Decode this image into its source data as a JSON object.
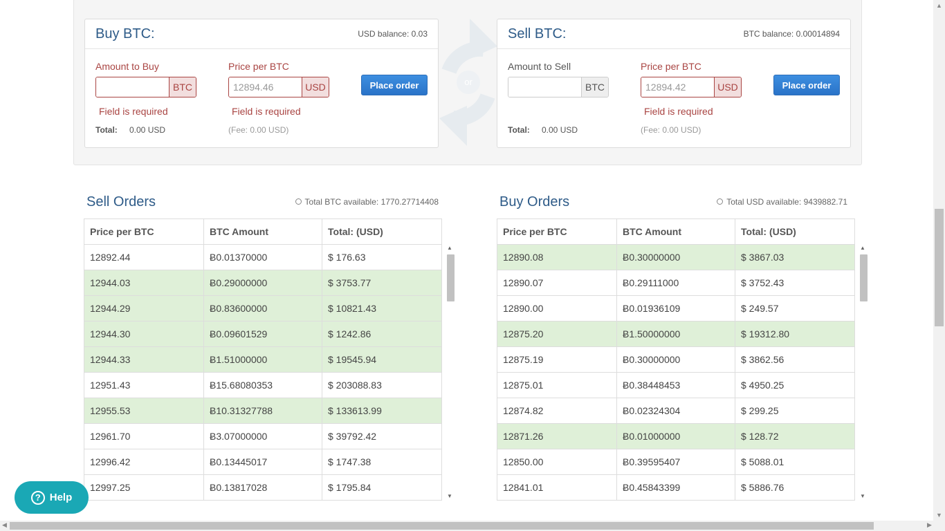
{
  "buy_form": {
    "title": "Buy BTC:",
    "balance": "USD balance: 0.03",
    "amount_label": "Amount to Buy",
    "amount_value": "",
    "amount_addon": "BTC",
    "price_label": "Price per BTC",
    "price_placeholder": "12894.46",
    "price_addon": "USD",
    "error_amount": "Field is required",
    "error_price": "Field is required",
    "total_label": "Total:",
    "total_value": "0.00 USD",
    "fee": "(Fee: 0.00 USD)",
    "button": "Place order"
  },
  "divider": {
    "label": "or",
    "icon": "swap-arrows-icon"
  },
  "sell_form": {
    "title": "Sell BTC:",
    "balance": "BTC balance: 0.00014894",
    "amount_label": "Amount to Sell",
    "amount_value": "",
    "amount_addon": "BTC",
    "price_label": "Price per BTC",
    "price_placeholder": "12894.42",
    "price_addon": "USD",
    "error_price": "Field is required",
    "total_label": "Total:",
    "total_value": "0.00 USD",
    "fee": "(Fee: 0.00 USD)",
    "button": "Place order"
  },
  "sell_orders": {
    "title": "Sell Orders",
    "info": "Total BTC available: 1770.27714408",
    "columns": [
      "Price per BTC",
      "BTC Amount",
      "Total: (USD)"
    ],
    "rows": [
      {
        "price": "12892.44",
        "amount": "Ƀ0.01370000",
        "total": "$ 176.63",
        "hl": false
      },
      {
        "price": "12944.03",
        "amount": "Ƀ0.29000000",
        "total": "$ 3753.77",
        "hl": true
      },
      {
        "price": "12944.29",
        "amount": "Ƀ0.83600000",
        "total": "$ 10821.43",
        "hl": true
      },
      {
        "price": "12944.30",
        "amount": "Ƀ0.09601529",
        "total": "$ 1242.86",
        "hl": true
      },
      {
        "price": "12944.33",
        "amount": "Ƀ1.51000000",
        "total": "$ 19545.94",
        "hl": true
      },
      {
        "price": "12951.43",
        "amount": "Ƀ15.68080353",
        "total": "$ 203088.83",
        "hl": false
      },
      {
        "price": "12955.53",
        "amount": "Ƀ10.31327788",
        "total": "$ 133613.99",
        "hl": true
      },
      {
        "price": "12961.70",
        "amount": "Ƀ3.07000000",
        "total": "$ 39792.42",
        "hl": false
      },
      {
        "price": "12996.42",
        "amount": "Ƀ0.13445017",
        "total": "$ 1747.38",
        "hl": false
      },
      {
        "price": "12997.25",
        "amount": "Ƀ0.13817028",
        "total": "$ 1795.84",
        "hl": false
      }
    ]
  },
  "buy_orders": {
    "title": "Buy Orders",
    "info": "Total USD available: 9439882.71",
    "columns": [
      "Price per BTC",
      "BTC Amount",
      "Total: (USD)"
    ],
    "rows": [
      {
        "price": "12890.08",
        "amount": "Ƀ0.30000000",
        "total": "$ 3867.03",
        "hl": true
      },
      {
        "price": "12890.07",
        "amount": "Ƀ0.29111000",
        "total": "$ 3752.43",
        "hl": false
      },
      {
        "price": "12890.00",
        "amount": "Ƀ0.01936109",
        "total": "$ 249.57",
        "hl": false
      },
      {
        "price": "12875.20",
        "amount": "Ƀ1.50000000",
        "total": "$ 19312.80",
        "hl": true
      },
      {
        "price": "12875.19",
        "amount": "Ƀ0.30000000",
        "total": "$ 3862.56",
        "hl": false
      },
      {
        "price": "12875.01",
        "amount": "Ƀ0.38448453",
        "total": "$ 4950.25",
        "hl": false
      },
      {
        "price": "12874.82",
        "amount": "Ƀ0.02324304",
        "total": "$ 299.25",
        "hl": false
      },
      {
        "price": "12871.26",
        "amount": "Ƀ0.01000000",
        "total": "$ 128.72",
        "hl": true
      },
      {
        "price": "12850.00",
        "amount": "Ƀ0.39595407",
        "total": "$ 5088.01",
        "hl": false
      },
      {
        "price": "12841.01",
        "amount": "Ƀ0.45843399",
        "total": "$ 5886.76",
        "hl": false
      }
    ]
  },
  "help": {
    "label": "Help",
    "icon": "question-circle-icon"
  },
  "colors": {
    "title_blue": "#2e5b88",
    "button_blue": "#2a73c8",
    "error_red": "#a94442",
    "highlight_green": "#dff0d8",
    "help_teal": "#1aa8b5"
  }
}
